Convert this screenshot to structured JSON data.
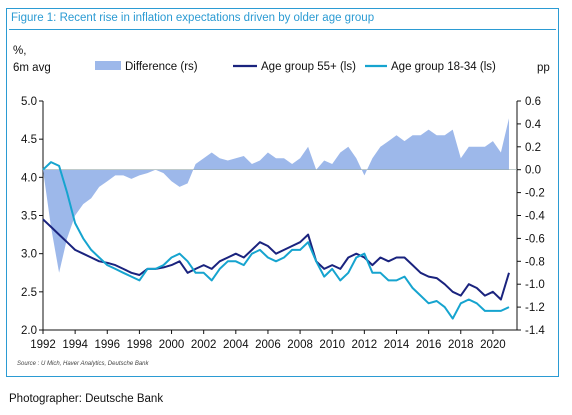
{
  "figure": {
    "title": "Figure 1: Recent rise in inflation expectations driven by older age group",
    "source": "Source : U Mich, Haver Analytics, Deutsche Bank"
  },
  "caption": "Photographer: Deutsche Bank",
  "colors": {
    "frame": "#2b9bd3",
    "difference": "#9db8ea",
    "age55": "#1a237e",
    "age1834": "#16a4cf"
  },
  "chart_data": {
    "type": "line",
    "left_axis_label_line1": "%,",
    "left_axis_label_line2": "6m avg",
    "right_axis_label": "pp",
    "x_ticks": [
      "1992",
      "1994",
      "1996",
      "1998",
      "2000",
      "2002",
      "2004",
      "2006",
      "2008",
      "2010",
      "2012",
      "2014",
      "2016",
      "2018",
      "2020"
    ],
    "y_left_ticks": [
      "5.0",
      "4.5",
      "4.0",
      "3.5",
      "3.0",
      "2.5",
      "2.0"
    ],
    "y_right_ticks": [
      "0.6",
      "0.4",
      "0.2",
      "0.0",
      "-0.2",
      "-0.4",
      "-0.6",
      "-0.8",
      "-1.0",
      "-1.2",
      "-1.4"
    ],
    "xlim": [
      1992,
      2021.5
    ],
    "ylim_left": [
      2.0,
      5.0
    ],
    "ylim_right": [
      -1.4,
      0.6
    ],
    "legend_position": "top",
    "x": [
      1992,
      1992.5,
      1993,
      1993.5,
      1994,
      1994.5,
      1995,
      1995.5,
      1996,
      1996.5,
      1997,
      1997.5,
      1998,
      1998.5,
      1999,
      1999.5,
      2000,
      2000.5,
      2001,
      2001.5,
      2002,
      2002.5,
      2003,
      2003.5,
      2004,
      2004.5,
      2005,
      2005.5,
      2006,
      2006.5,
      2007,
      2007.5,
      2008,
      2008.5,
      2009,
      2009.5,
      2010,
      2010.5,
      2011,
      2011.5,
      2012,
      2012.5,
      2013,
      2013.5,
      2014,
      2014.5,
      2015,
      2015.5,
      2016,
      2016.5,
      2017,
      2017.5,
      2018,
      2018.5,
      2019,
      2019.5,
      2020,
      2020.5,
      2021
    ],
    "series": [
      {
        "name": "Difference (rs)",
        "axis": "right",
        "kind": "area",
        "values": [
          0.0,
          -0.5,
          -0.9,
          -0.6,
          -0.4,
          -0.3,
          -0.25,
          -0.15,
          -0.1,
          -0.05,
          -0.05,
          -0.08,
          -0.05,
          -0.03,
          0.0,
          -0.03,
          -0.1,
          -0.15,
          -0.12,
          0.05,
          0.1,
          0.15,
          0.1,
          0.08,
          0.1,
          0.12,
          0.05,
          0.08,
          0.15,
          0.1,
          0.1,
          0.05,
          0.1,
          0.2,
          0.0,
          0.08,
          0.05,
          0.15,
          0.2,
          0.1,
          -0.05,
          0.1,
          0.2,
          0.25,
          0.3,
          0.25,
          0.3,
          0.3,
          0.35,
          0.3,
          0.3,
          0.35,
          0.1,
          0.2,
          0.2,
          0.2,
          0.25,
          0.15,
          0.45
        ]
      },
      {
        "name": "Age group 55+ (ls)",
        "axis": "left",
        "kind": "line",
        "values": [
          3.45,
          3.35,
          3.25,
          3.15,
          3.05,
          3.0,
          2.95,
          2.9,
          2.88,
          2.85,
          2.8,
          2.75,
          2.72,
          2.8,
          2.8,
          2.82,
          2.85,
          2.9,
          2.75,
          2.8,
          2.85,
          2.8,
          2.9,
          2.95,
          3.0,
          2.95,
          3.05,
          3.15,
          3.1,
          3.0,
          3.05,
          3.1,
          3.15,
          3.25,
          2.9,
          2.8,
          2.85,
          2.8,
          2.95,
          3.0,
          2.95,
          2.85,
          2.95,
          2.9,
          2.95,
          2.95,
          2.85,
          2.75,
          2.7,
          2.68,
          2.6,
          2.5,
          2.45,
          2.6,
          2.55,
          2.45,
          2.5,
          2.4,
          2.75
        ]
      },
      {
        "name": "Age group 18-34 (ls)",
        "axis": "left",
        "kind": "line",
        "values": [
          4.1,
          4.2,
          4.15,
          3.8,
          3.4,
          3.2,
          3.05,
          2.95,
          2.85,
          2.8,
          2.75,
          2.7,
          2.65,
          2.8,
          2.8,
          2.85,
          2.95,
          3.0,
          2.9,
          2.75,
          2.75,
          2.65,
          2.8,
          2.9,
          2.9,
          2.85,
          3.0,
          3.05,
          2.95,
          2.9,
          2.95,
          3.05,
          3.05,
          3.15,
          2.9,
          2.7,
          2.8,
          2.65,
          2.75,
          2.95,
          3.0,
          2.75,
          2.75,
          2.65,
          2.65,
          2.7,
          2.55,
          2.45,
          2.35,
          2.38,
          2.3,
          2.15,
          2.35,
          2.4,
          2.35,
          2.25,
          2.25,
          2.25,
          2.3
        ]
      }
    ]
  }
}
